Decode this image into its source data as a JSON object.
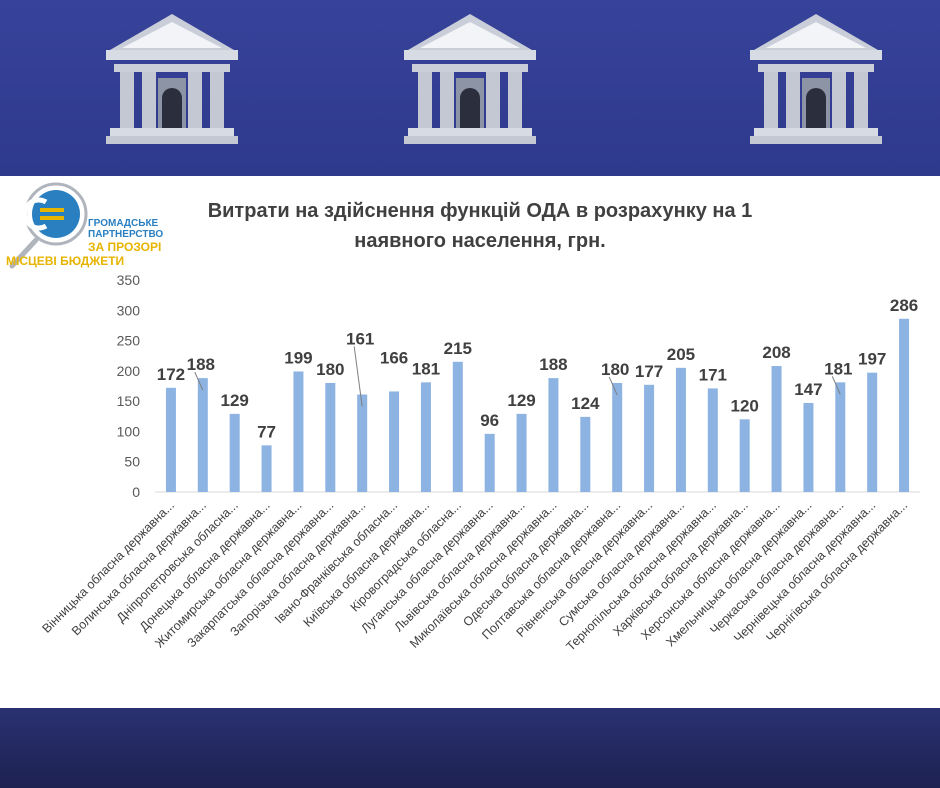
{
  "logo": {
    "line1": "ГРОМАДСЬКЕ",
    "line2": "ПАРТНЕРСТВО",
    "line3": "ЗА ПРОЗОРІ",
    "line4": "МІСЦЕВІ БЮДЖЕТИ",
    "ring_text": "ГРОМАДСЬКЕ ПАРТНЕРСТВО ЗА ПРОЗОРІ МІСЦЕВІ БЮДЖЕТИ",
    "colors": {
      "blue": "#2a7fc1",
      "yellow": "#e7b400"
    }
  },
  "header": {
    "icons": [
      "bank-building-icon",
      "bank-building-icon",
      "bank-building-icon"
    ],
    "color": "#2e3a8c"
  },
  "chart_data": {
    "type": "bar",
    "title_line1": "Витрати на здійснення функцій ОДА в розрахунку на 1",
    "title_line2": "наявного населення, грн.",
    "ylim": [
      0,
      350
    ],
    "yticks": [
      0,
      50,
      100,
      150,
      200,
      250,
      300,
      350
    ],
    "grid": false,
    "bar_color": "#8db3e2",
    "categories": [
      "Вінницька обласна державна...",
      "Волинська обласна державна...",
      "Дніпропетровська обласна...",
      "Донецька обласна державна...",
      "Житомирська обласна державна...",
      "Закарпатська обласна державна...",
      "Запорізька обласна державна...",
      "Івано-Франківська обласна...",
      "Київська обласна державна...",
      "Кіровоградська обласна...",
      "Луганська обласна державна...",
      "Львівська обласна державна...",
      "Миколаївська обласна державна...",
      "Одеська обласна державна...",
      "Полтавська обласна державна...",
      "Рівненська обласна державна...",
      "Сумська обласна державна...",
      "Тернопільська обласна державна...",
      "Харківська обласна державна...",
      "Херсонська обласна державна...",
      "Хмельницька обласна державна...",
      "Черкаська обласна державна...",
      "Чернівецька обласна державна...",
      "Чернігівська обласна державна..."
    ],
    "values": [
      172,
      188,
      129,
      77,
      199,
      180,
      161,
      166,
      181,
      215,
      96,
      129,
      188,
      124,
      180,
      177,
      205,
      171,
      120,
      208,
      147,
      181,
      197,
      286
    ]
  }
}
